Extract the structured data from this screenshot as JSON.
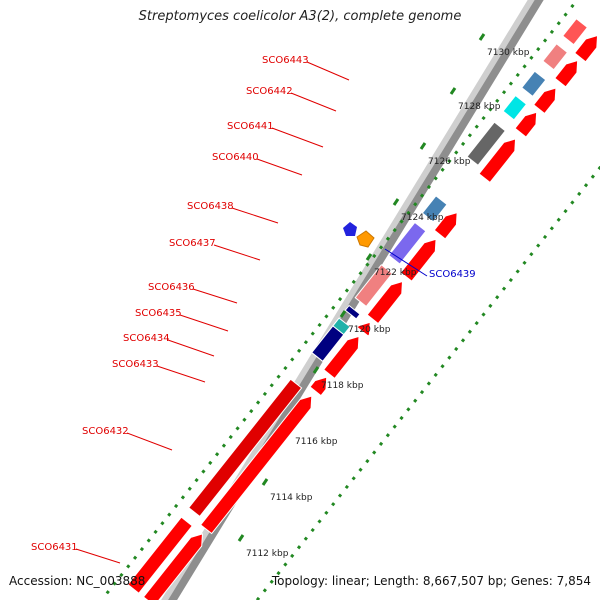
{
  "title": "Streptomyces coelicolor A3(2), complete genome",
  "footer": {
    "accession": "Accession: NC_003888",
    "summary": "Topology: linear; Length: 8,667,507 bp; Genes: 7,854"
  },
  "colors": {
    "gene": "#ff0000",
    "label_red": "#e00000",
    "label_blue": "#0000cc",
    "tick": "#228822",
    "strand": "#888888"
  },
  "ruler": [
    {
      "label": "7112 kbp",
      "pos": 7112
    },
    {
      "label": "7114 kbp",
      "pos": 7114
    },
    {
      "label": "7116 kbp",
      "pos": 7116
    },
    {
      "label": "7118 kbp",
      "pos": 7118
    },
    {
      "label": "7120 kbp",
      "pos": 7120
    },
    {
      "label": "7122 kbp",
      "pos": 7122
    },
    {
      "label": "7124 kbp",
      "pos": 7124
    },
    {
      "label": "7126 kbp",
      "pos": 7126
    },
    {
      "label": "7128 kbp",
      "pos": 7128
    },
    {
      "label": "7130 kbp",
      "pos": 7130
    }
  ],
  "genes": [
    {
      "name": "SCO6431",
      "color": "#e00000"
    },
    {
      "name": "SCO6432",
      "color": "#e00000"
    },
    {
      "name": "SCO6433",
      "color": "#e00000"
    },
    {
      "name": "SCO6434",
      "color": "#e00000"
    },
    {
      "name": "SCO6435",
      "color": "#e00000"
    },
    {
      "name": "SCO6436",
      "color": "#e00000"
    },
    {
      "name": "SCO6437",
      "color": "#e00000"
    },
    {
      "name": "SCO6438",
      "color": "#e00000"
    },
    {
      "name": "SCO6439",
      "color": "#0000cc"
    },
    {
      "name": "SCO6440",
      "color": "#e00000"
    },
    {
      "name": "SCO6441",
      "color": "#e00000"
    },
    {
      "name": "SCO6442",
      "color": "#e00000"
    },
    {
      "name": "SCO6443",
      "color": "#e00000"
    }
  ]
}
